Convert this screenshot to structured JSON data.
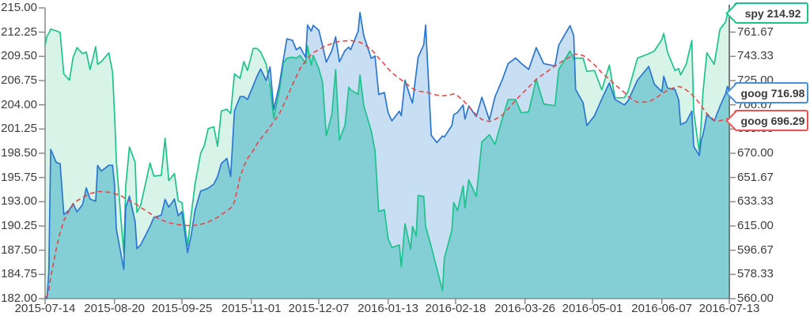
{
  "chart": {
    "callouts": [
      {
        "series": "spy",
        "label": "spy 214.92",
        "color": "#1ec28d"
      },
      {
        "series": "goog",
        "label": "goog 716.98",
        "color": "#4a90d9"
      },
      {
        "series": "goog_ma",
        "label": "goog 696.29",
        "color": "#e55353"
      }
    ]
  },
  "chart_data": {
    "type": "area",
    "title": "",
    "grid": false,
    "x_start_date": "2015-07-14",
    "x_end_date": "2016-07-13",
    "x_tick_labels": [
      "2015-07-14",
      "2015-08-20",
      "2015-09-25",
      "2015-11-01",
      "2015-12-07",
      "2016-01-13",
      "2016-02-18",
      "2016-03-26",
      "2016-05-01",
      "2016-06-07",
      "2016-07-13"
    ],
    "x_tick_days": [
      0,
      37,
      73,
      110,
      146,
      183,
      219,
      256,
      292,
      329,
      365
    ],
    "left_axis": {
      "range": [
        182,
        215
      ],
      "ticks": [
        "215.00",
        "212.25",
        "209.50",
        "206.75",
        "204.00",
        "201.25",
        "198.50",
        "195.75",
        "193.00",
        "190.25",
        "187.50",
        "184.75",
        "182.00"
      ]
    },
    "right_axis": {
      "range": [
        560,
        780
      ],
      "ticks": [
        "761.67",
        "743.33",
        "725.00",
        "706.67",
        "688.33",
        "670.00",
        "651.67",
        "633.33",
        "615.00",
        "596.67",
        "578.33",
        "560.00"
      ]
    },
    "series": [
      {
        "name": "spy",
        "axis": "left",
        "type": "area",
        "line_color": "#1ec28d",
        "fill_color": "#d8f4e8",
        "last_value": 214.92
      },
      {
        "name": "goog",
        "axis": "right",
        "type": "area",
        "line_color": "#2b76cf",
        "fill_color": "#c8def2",
        "last_value": 716.98
      },
      {
        "name": "goog_ma",
        "axis": "right",
        "type": "line",
        "style": "dashed",
        "line_color": "#e54747",
        "last_value": 696.29
      }
    ],
    "overlap_fill_color": "#84cfd6",
    "axis_color": "#8a8a8a",
    "points_format": [
      "day_offset",
      "spy",
      "goog",
      "goog_ma"
    ],
    "points": [
      [
        0,
        210.8,
        561,
        561
      ],
      [
        1,
        211.8,
        560.2,
        562
      ],
      [
        2,
        212.1,
        579.9,
        566
      ],
      [
        3,
        212.6,
        672.9,
        576
      ],
      [
        6,
        212.4,
        663.0,
        598
      ],
      [
        8,
        212.2,
        662.1,
        610
      ],
      [
        10,
        207.5,
        623.6,
        619
      ],
      [
        13,
        206.8,
        627.3,
        627
      ],
      [
        15,
        209.4,
        631.9,
        631
      ],
      [
        17,
        210.5,
        625.6,
        634
      ],
      [
        20,
        209.8,
        631.2,
        636.5
      ],
      [
        22,
        210.0,
        643.8,
        638
      ],
      [
        24,
        208.0,
        635.3,
        639.5
      ],
      [
        27,
        210.6,
        633.7,
        640.5
      ],
      [
        28,
        208.6,
        660.8,
        641
      ],
      [
        30,
        208.9,
        656.5,
        641
      ],
      [
        34,
        209.9,
        660.9,
        640.5
      ],
      [
        36,
        207.7,
        660.9,
        640
      ],
      [
        37,
        203.2,
        646.8,
        639.5
      ],
      [
        38,
        197.6,
        612.5,
        639
      ],
      [
        41,
        189.6,
        589.6,
        637.5
      ],
      [
        42,
        187.2,
        582.1,
        636.5
      ],
      [
        43,
        194.7,
        628.6,
        635.5
      ],
      [
        45,
        199.2,
        637.6,
        634
      ],
      [
        48,
        197.5,
        618.2,
        632
      ],
      [
        49,
        191.8,
        597.8,
        631
      ],
      [
        51,
        192.6,
        600.7,
        629
      ],
      [
        56,
        197.4,
        614.7,
        624.5
      ],
      [
        58,
        195.9,
        621.4,
        622.5
      ],
      [
        62,
        196.0,
        623.2,
        619.5
      ],
      [
        64,
        200.2,
        635.1,
        618.5
      ],
      [
        66,
        195.4,
        629.2,
        617.5
      ],
      [
        69,
        196.2,
        635.4,
        616.5
      ],
      [
        71,
        193.1,
        622.7,
        616
      ],
      [
        73,
        192.9,
        625.8,
        615.7
      ],
      [
        76,
        188.0,
        594.9,
        615.3
      ],
      [
        78,
        191.6,
        608.4,
        615.2
      ],
      [
        80,
        195.0,
        626.9,
        615.5
      ],
      [
        83,
        198.5,
        641.5,
        616.2
      ],
      [
        85,
        199.4,
        642.4,
        617
      ],
      [
        87,
        201.3,
        643.6,
        618
      ],
      [
        90,
        201.5,
        646.7,
        620
      ],
      [
        92,
        199.3,
        652.3,
        621.5
      ],
      [
        94,
        203.3,
        662.2,
        623.5
      ],
      [
        97,
        203.5,
        666.1,
        626.5
      ],
      [
        99,
        203.0,
        652.3,
        628.5
      ],
      [
        101,
        207.5,
        702.0,
        633
      ],
      [
        104,
        207.0,
        712.8,
        652
      ],
      [
        106,
        208.9,
        712.9,
        660
      ],
      [
        108,
        207.9,
        710.8,
        666
      ],
      [
        111,
        210.4,
        721.1,
        672
      ],
      [
        113,
        210.4,
        728.1,
        677
      ],
      [
        115,
        210.0,
        733.8,
        681
      ],
      [
        118,
        208.6,
        724.9,
        686
      ],
      [
        120,
        206.1,
        735.4,
        690
      ],
      [
        122,
        202.5,
        703.0,
        694
      ],
      [
        125,
        205.6,
        722.0,
        700
      ],
      [
        127,
        208.7,
        740.0,
        706
      ],
      [
        129,
        209.3,
        756.6,
        712
      ],
      [
        132,
        209.4,
        755.4,
        722
      ],
      [
        134,
        209.3,
        748.3,
        728
      ],
      [
        136,
        209.6,
        750.3,
        734
      ],
      [
        139,
        208.7,
        742.6,
        740
      ],
      [
        140,
        210.7,
        767.0,
        742
      ],
      [
        142,
        208.5,
        762.4,
        744.5
      ],
      [
        143,
        209.6,
        766.8,
        746
      ],
      [
        146,
        208.1,
        763.2,
        748.5
      ],
      [
        148,
        206.6,
        751.6,
        750
      ],
      [
        150,
        200.5,
        738.9,
        751.5
      ],
      [
        153,
        202.9,
        747.8,
        753
      ],
      [
        155,
        208.0,
        758.1,
        754
      ],
      [
        157,
        200.0,
        739.3,
        754.7
      ],
      [
        160,
        201.7,
        747.8,
        755
      ],
      [
        162,
        206.0,
        750.3,
        755.2
      ],
      [
        163,
        205.7,
        748.4,
        755.3
      ],
      [
        167,
        205.2,
        762.5,
        754.5
      ],
      [
        168,
        207.4,
        776.6,
        754
      ],
      [
        170,
        203.9,
        758.9,
        752.5
      ],
      [
        174,
        201.0,
        741.8,
        748.5
      ],
      [
        176,
        198.8,
        743.6,
        745.5
      ],
      [
        178,
        191.9,
        714.5,
        742
      ],
      [
        181,
        192.1,
        716.0,
        737.5
      ],
      [
        183,
        188.8,
        700.6,
        734
      ],
      [
        185,
        187.8,
        694.5,
        731
      ],
      [
        189,
        188.1,
        701.8,
        726.5
      ],
      [
        190,
        185.6,
        698.4,
        725.5
      ],
      [
        192,
        190.5,
        725.3,
        723.5
      ],
      [
        195,
        187.6,
        711.7,
        720
      ],
      [
        196,
        190.2,
        708.0,
        719
      ],
      [
        198,
        189.1,
        730.9,
        717.5
      ],
      [
        199,
        193.7,
        742.9,
        717
      ],
      [
        202,
        193.6,
        752.0,
        716.5
      ],
      [
        203,
        190.2,
        767.0,
        716.5
      ],
      [
        206,
        187.9,
        683.6,
        715
      ],
      [
        209,
        185.4,
        678.1,
        714
      ],
      [
        212,
        182.9,
        683.1,
        713.5
      ],
      [
        213,
        186.6,
        682.4,
        713.6
      ],
      [
        217,
        189.8,
        691.0,
        714.5
      ],
      [
        218,
        192.9,
        699.2,
        715
      ],
      [
        220,
        192.0,
        700.9,
        713.5
      ],
      [
        223,
        194.8,
        706.5,
        710
      ],
      [
        224,
        192.3,
        695.9,
        708.5
      ],
      [
        226,
        195.5,
        705.8,
        705.5
      ],
      [
        230,
        193.6,
        697.8,
        699
      ],
      [
        233,
        199.8,
        712.4,
        695.5
      ],
      [
        237,
        200.6,
        695.2,
        694
      ],
      [
        240,
        199.5,
        712.8,
        695.5
      ],
      [
        244,
        202.5,
        726.0,
        699
      ],
      [
        247,
        204.6,
        737.8,
        703.5
      ],
      [
        251,
        204.6,
        742.1,
        710
      ],
      [
        254,
        203.1,
        738.1,
        714.5
      ],
      [
        258,
        203.2,
        733.5,
        720
      ],
      [
        262,
        206.9,
        749.9,
        726
      ],
      [
        266,
        204.1,
        737.8,
        730
      ],
      [
        272,
        203.9,
        736.1,
        736
      ],
      [
        274,
        208.0,
        751.7,
        738
      ],
      [
        280,
        210.1,
        766.6,
        743
      ],
      [
        282,
        209.2,
        759.1,
        744.5
      ],
      [
        283,
        209.3,
        718.3,
        745
      ],
      [
        287,
        209.3,
        708.1,
        744
      ],
      [
        289,
        207.8,
        691.0,
        742
      ],
      [
        293,
        207.9,
        698.2,
        737
      ],
      [
        297,
        205.7,
        711.1,
        731
      ],
      [
        301,
        208.5,
        723.2,
        726
      ],
      [
        304,
        204.8,
        710.8,
        722
      ],
      [
        309,
        204.8,
        706.6,
        716
      ],
      [
        311,
        205.5,
        709.7,
        713
      ],
      [
        316,
        209.3,
        725.3,
        708.5
      ],
      [
        322,
        209.8,
        735.7,
        709
      ],
      [
        325,
        210.1,
        722.3,
        711
      ],
      [
        329,
        211.4,
        716.6,
        715
      ],
      [
        330,
        212.1,
        728.3,
        716
      ],
      [
        332,
        210.0,
        719.4,
        717.5
      ],
      [
        336,
        207.9,
        718.3,
        720
      ],
      [
        338,
        208.1,
        710.4,
        720.5
      ],
      [
        339,
        207.4,
        691.7,
        720.3
      ],
      [
        342,
        208.6,
        693.7,
        718
      ],
      [
        345,
        211.3,
        701.9,
        714.5
      ],
      [
        346,
        203.2,
        675.2,
        713
      ],
      [
        349,
        198.6,
        668.3,
        708
      ],
      [
        350,
        202.1,
        680.0,
        706
      ],
      [
        351,
        205.5,
        684.1,
        704
      ],
      [
        353,
        209.9,
        699.2,
        700
      ],
      [
        357,
        208.6,
        694.5,
        695
      ],
      [
        360,
        212.6,
        705.6,
        694.5
      ],
      [
        363,
        213.4,
        715.1,
        696
      ],
      [
        364,
        214.3,
        720.6,
        696.2
      ],
      [
        365,
        214.92,
        716.98,
        696.29
      ]
    ]
  }
}
